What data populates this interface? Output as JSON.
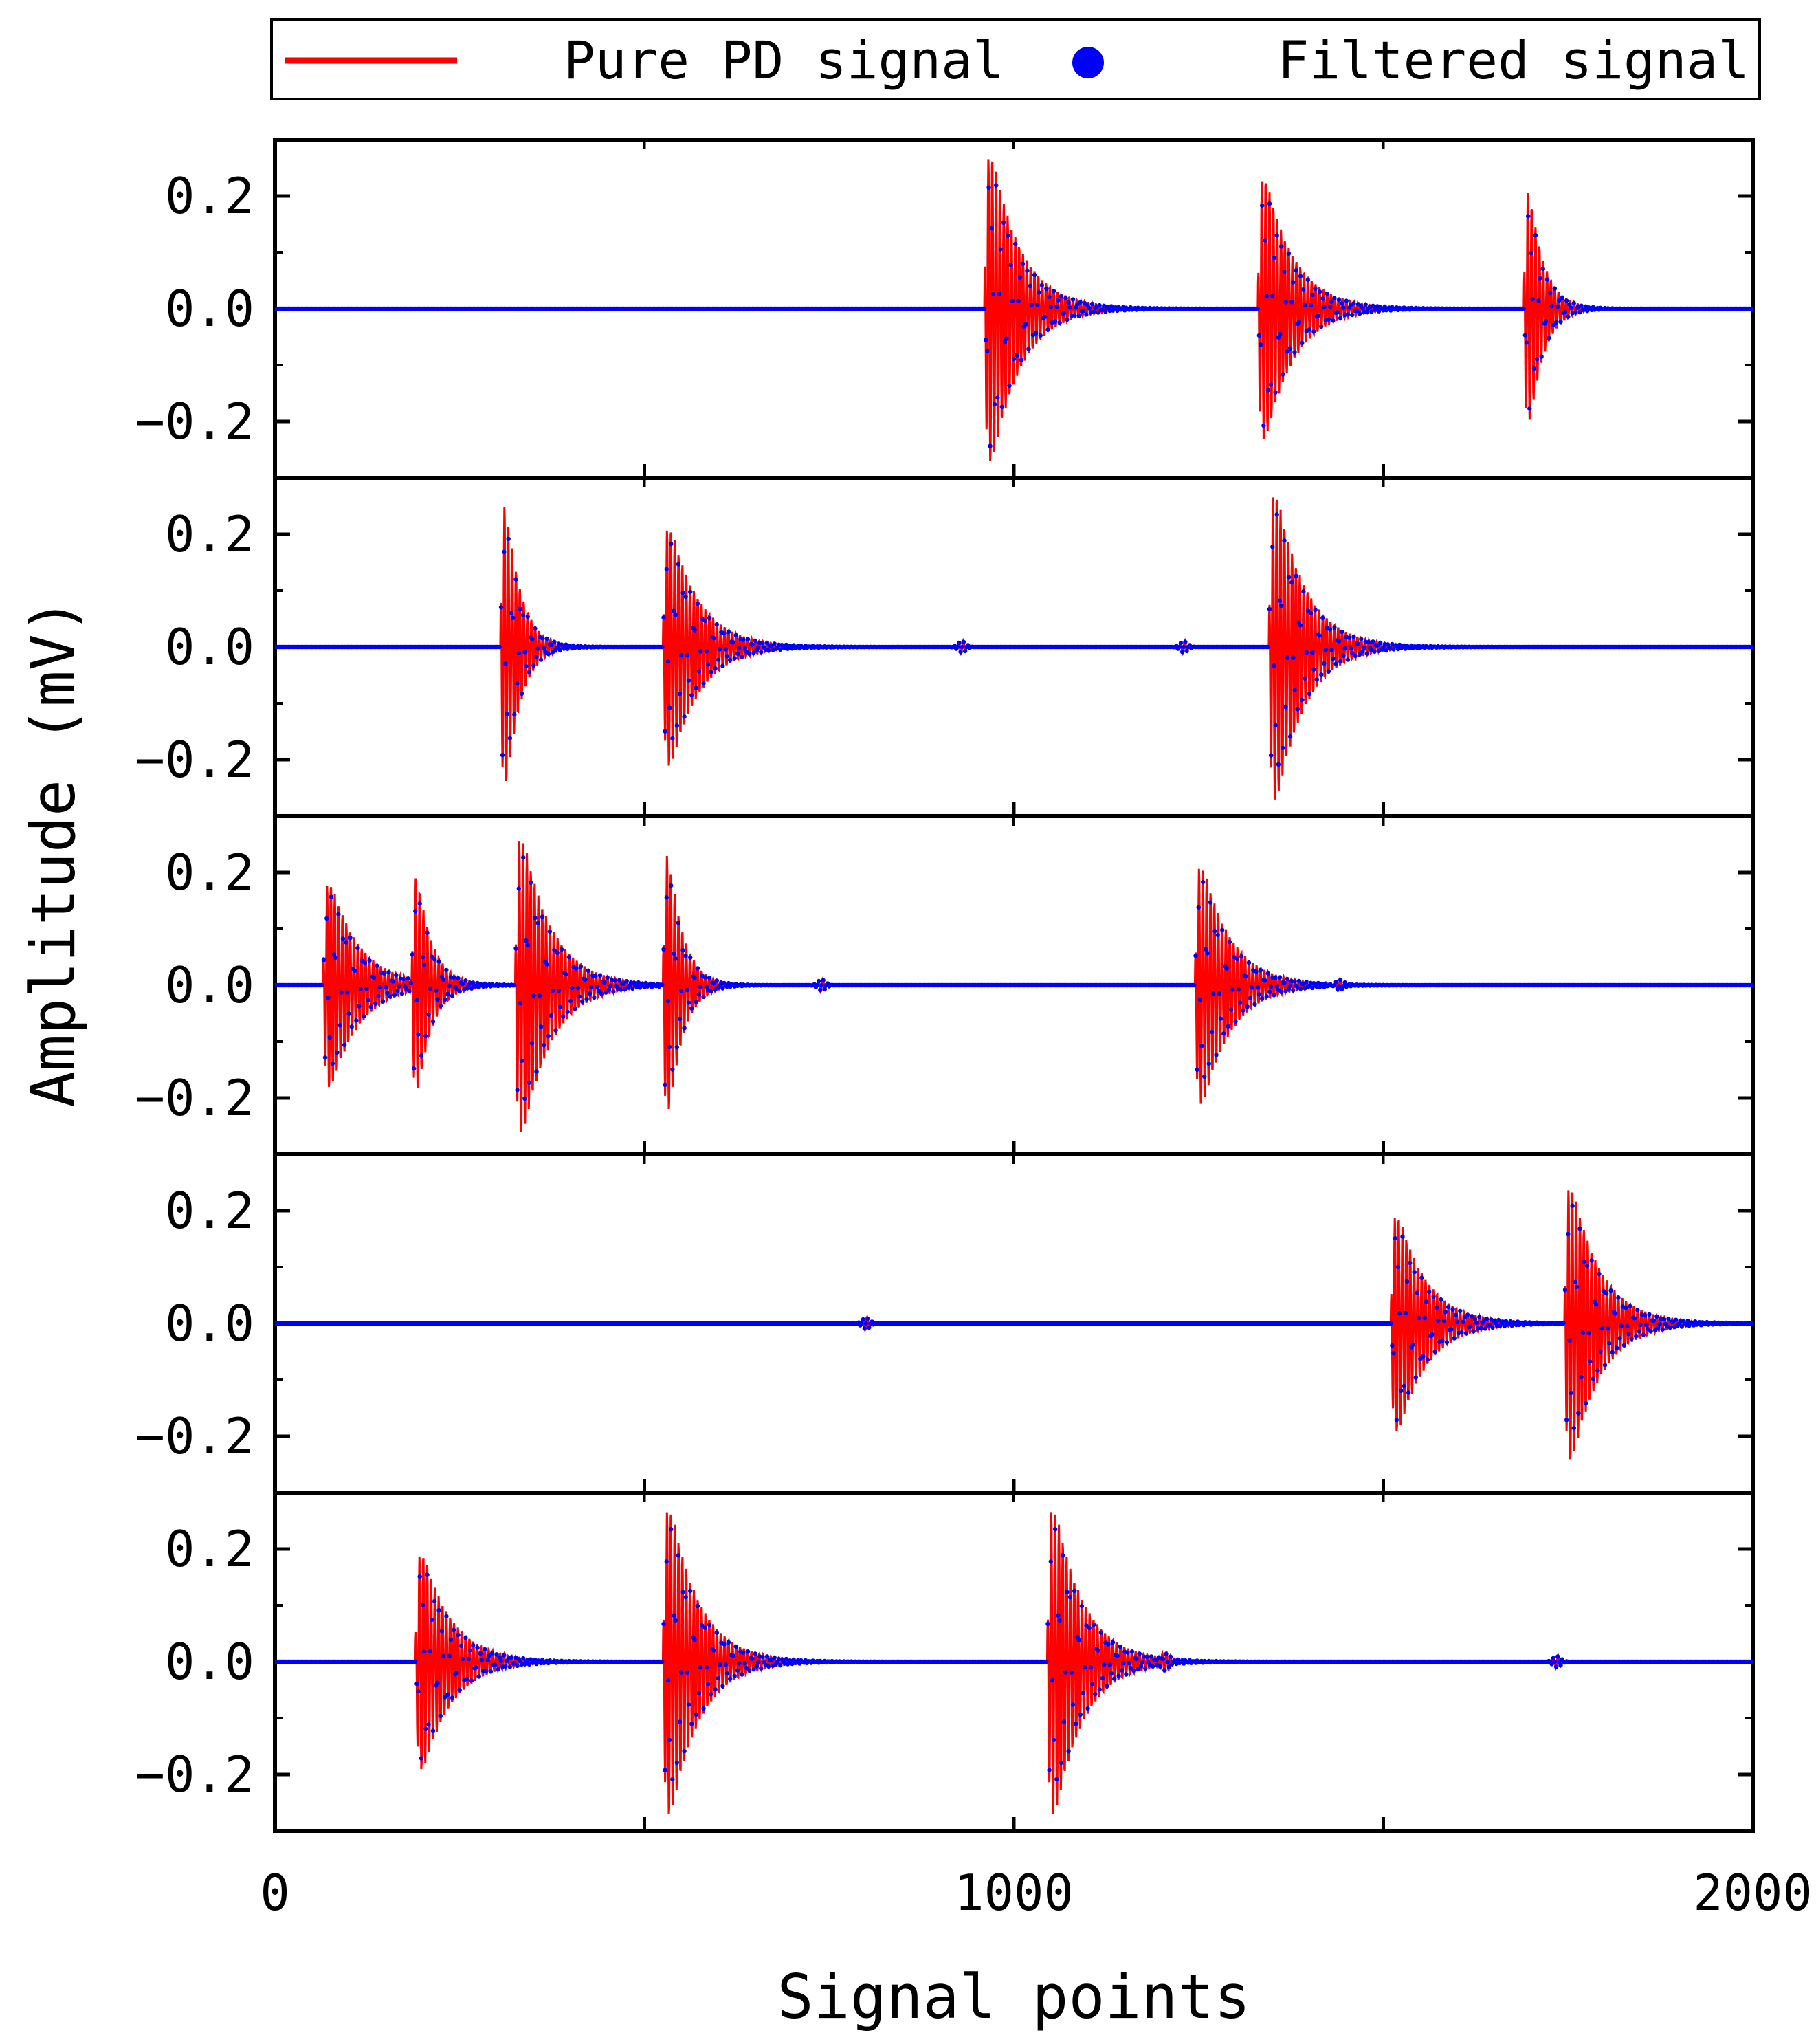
{
  "chart_data": {
    "type": "line",
    "xlabel": "Signal points",
    "ylabel": "Amplitude (mV)",
    "xlim": [
      0,
      2000
    ],
    "ylim": [
      -0.3,
      0.3
    ],
    "x_ticks": [
      "0",
      "1000",
      "2000"
    ],
    "x_minor_ticks": [
      500,
      1500
    ],
    "y_ticks": [
      {
        "value": -0.2,
        "label": "−0.2"
      },
      {
        "value": 0.0,
        "label": "0.0"
      },
      {
        "value": 0.2,
        "label": "0.2"
      }
    ],
    "grid": false,
    "legend": {
      "placement": "top",
      "entries": [
        {
          "label": "Pure PD signal",
          "marker": "line",
          "color": "#ff0000"
        },
        {
          "label": "Filtered signal",
          "marker": "dot",
          "color": "#0000ff"
        }
      ]
    },
    "colors": {
      "pure": "#ff0000",
      "filtered": "#0000ff"
    },
    "panels": [
      {
        "pulses": [
          {
            "start": 960,
            "amp": 0.27,
            "tau": 40
          },
          {
            "start": 1330,
            "amp": 0.23,
            "tau": 40
          },
          {
            "start": 1690,
            "amp": 0.24,
            "tau": 20
          }
        ],
        "ripples": []
      },
      {
        "pulses": [
          {
            "start": 305,
            "amp": 0.29,
            "tau": 20
          },
          {
            "start": 525,
            "amp": 0.21,
            "tau": 40
          },
          {
            "start": 1345,
            "amp": 0.27,
            "tau": 40
          }
        ],
        "ripples": [
          930,
          1230
        ]
      },
      {
        "pulses": [
          {
            "start": 65,
            "amp": 0.18,
            "tau": 40
          },
          {
            "start": 185,
            "amp": 0.21,
            "tau": 20
          },
          {
            "start": 325,
            "amp": 0.26,
            "tau": 40
          },
          {
            "start": 525,
            "amp": 0.27,
            "tau": 20
          },
          {
            "start": 1245,
            "amp": 0.21,
            "tau": 40
          }
        ],
        "ripples": [
          740,
          1440
        ]
      },
      {
        "pulses": [
          {
            "start": 1510,
            "amp": 0.19,
            "tau": 40
          },
          {
            "start": 1745,
            "amp": 0.24,
            "tau": 40
          }
        ],
        "ripples": [
          800
        ]
      },
      {
        "pulses": [
          {
            "start": 190,
            "amp": 0.19,
            "tau": 40
          },
          {
            "start": 525,
            "amp": 0.27,
            "tau": 40
          },
          {
            "start": 1045,
            "amp": 0.27,
            "tau": 40
          }
        ],
        "ripples": [
          1205,
          1735
        ]
      }
    ]
  }
}
